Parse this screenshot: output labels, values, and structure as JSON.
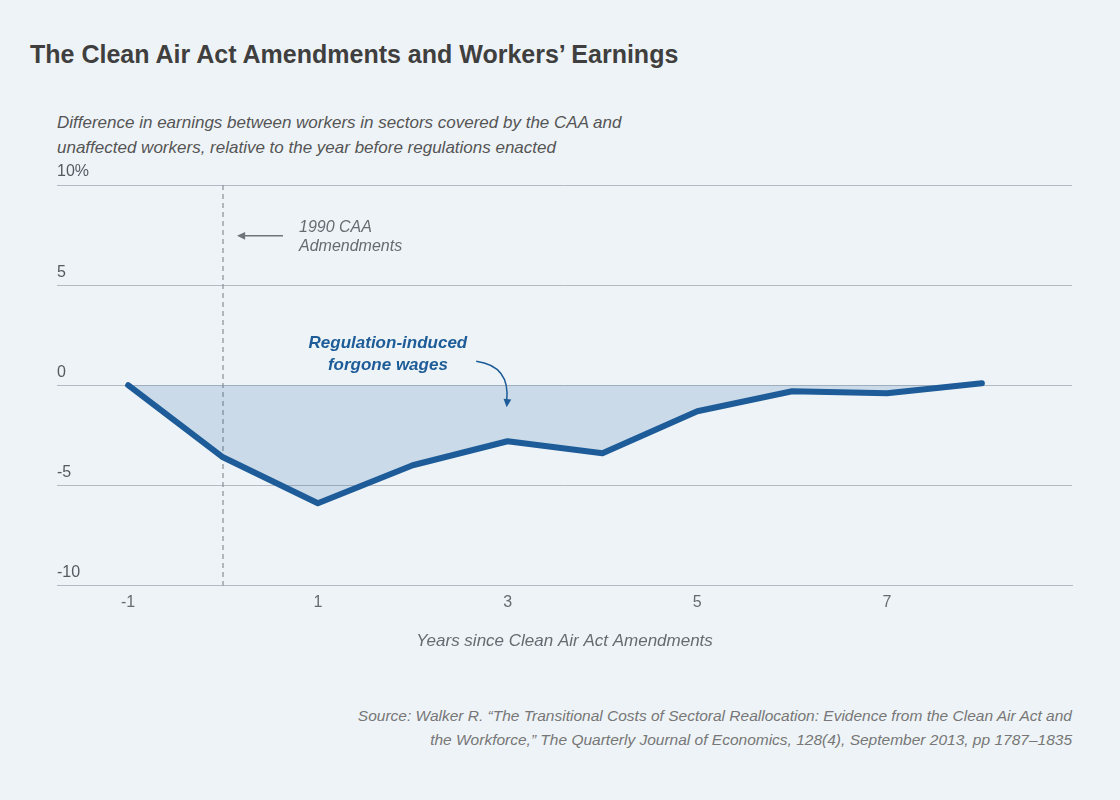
{
  "chart_data": {
    "type": "area",
    "title": "The Clean Air Act Amendments and Workers’ Earnings",
    "subtitle": "Difference in earnings between workers in sectors covered by the CAA and unaffected workers, relative to the year before regulations enacted",
    "x_label": "Years since Clean Air Act Amendments",
    "x": [
      -1,
      0,
      1,
      2,
      3,
      4,
      5,
      6,
      7,
      8
    ],
    "values": [
      0,
      -3.6,
      -5.9,
      -4.0,
      -2.8,
      -3.4,
      -1.3,
      -0.3,
      -0.4,
      0.1
    ],
    "color": "#1d5c98",
    "xlim": [
      -1.75,
      8.95
    ],
    "xticks": [
      -1,
      1,
      3,
      5,
      7
    ],
    "ylim": [
      -10,
      10
    ],
    "yticks": [
      {
        "value": 10,
        "label": "10%"
      },
      5,
      0,
      -5,
      -10
    ],
    "grid": true,
    "annotations": [
      {
        "type": "vline",
        "x": 0,
        "text": [
          "1990 CAA",
          "Admendments"
        ]
      },
      {
        "type": "area_label",
        "text": [
          "Regulation-induced",
          "forgone wages"
        ]
      }
    ],
    "source": [
      "Source: Walker R. “The Transitional Costs of Sectoral Reallocation: Evidence from the Clean Air Act and",
      "the Workforce,” The Quarterly Journal of Economics, 128(4), September 2013, pp 1787–1835"
    ]
  }
}
